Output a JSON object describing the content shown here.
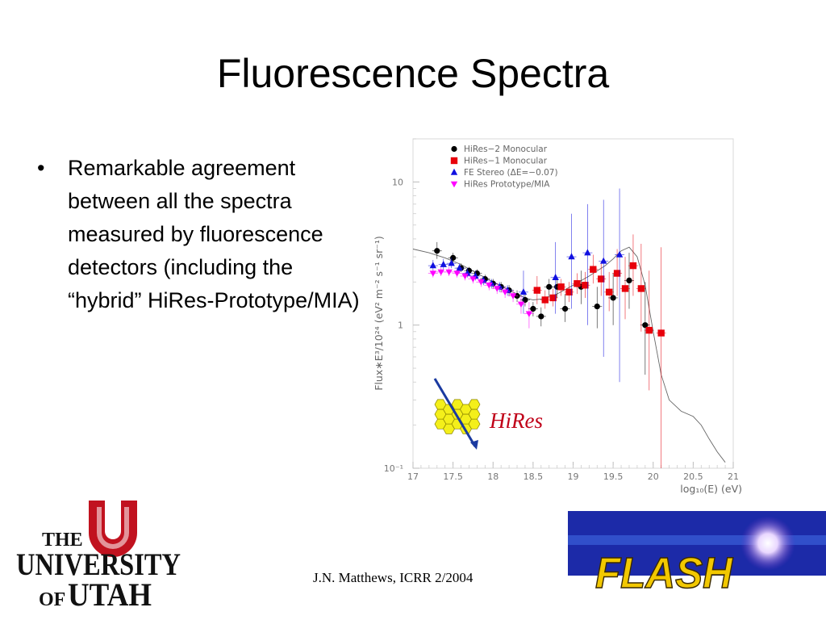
{
  "slide": {
    "title": "Fluorescence Spectra",
    "bullet_marker": "•",
    "bullet_text": "Remarkable agreement between all the spectra measured by fluorescence detectors (including the “hybrid” HiRes-Prototype/MIA)",
    "footer": "J.N. Matthews, ICRR 2/2004"
  },
  "logos": {
    "utah": {
      "line1": "THE",
      "line2": "UNIVERSITY",
      "line3a": "OF",
      "line3b": "UTAH"
    },
    "flash": {
      "text": "FLASH"
    },
    "hires": {
      "text": "HiRes"
    }
  },
  "colors": {
    "hires2": "#000000",
    "hires1": "#e8000b",
    "fe_stereo": "#1010e0",
    "prototype": "#ff00ff",
    "utah_red": "#c1121f",
    "flash_yellow": "#f2c800",
    "flash_bg": "#1c2aa8",
    "honeycomb": "#f4ef1a",
    "arrow": "#1a3aa0"
  },
  "chart_data": {
    "type": "scatter",
    "xlabel": "log₁₀(E) (eV)",
    "ylabel": "Flux∗E³/10²⁴ (eV² m⁻² s⁻¹ sr⁻¹)",
    "xlim": [
      17,
      21
    ],
    "ylim": [
      0.1,
      20
    ],
    "ylog": true,
    "xticks": [
      "17",
      "17.5",
      "18",
      "18.5",
      "19",
      "19.5",
      "20",
      "20.5",
      "21"
    ],
    "yticks": [
      {
        "value": 10,
        "label": "10"
      },
      {
        "value": 1,
        "label": "1"
      },
      {
        "value": 0.1,
        "label": "10⁻¹"
      }
    ],
    "legend_position": "top-left",
    "series": [
      {
        "name": "HiRes−2 Monocular",
        "marker": "circle",
        "color": "#000000",
        "points": [
          {
            "x": 17.3,
            "y": 3.3,
            "lo": 2.9,
            "hi": 3.8
          },
          {
            "x": 17.5,
            "y": 2.95,
            "lo": 2.7,
            "hi": 3.2
          },
          {
            "x": 17.6,
            "y": 2.5,
            "lo": 2.35,
            "hi": 2.7
          },
          {
            "x": 17.7,
            "y": 2.4,
            "lo": 2.25,
            "hi": 2.55
          },
          {
            "x": 17.8,
            "y": 2.3,
            "lo": 2.15,
            "hi": 2.45
          },
          {
            "x": 17.9,
            "y": 2.1,
            "lo": 1.95,
            "hi": 2.25
          },
          {
            "x": 18.0,
            "y": 1.95,
            "lo": 1.8,
            "hi": 2.1
          },
          {
            "x": 18.1,
            "y": 1.85,
            "lo": 1.7,
            "hi": 2.0
          },
          {
            "x": 18.2,
            "y": 1.75,
            "lo": 1.6,
            "hi": 1.9
          },
          {
            "x": 18.3,
            "y": 1.6,
            "lo": 1.45,
            "hi": 1.75
          },
          {
            "x": 18.4,
            "y": 1.5,
            "lo": 1.35,
            "hi": 1.65
          },
          {
            "x": 18.5,
            "y": 1.3,
            "lo": 1.15,
            "hi": 1.45
          },
          {
            "x": 18.6,
            "y": 1.15,
            "lo": 0.98,
            "hi": 1.33
          },
          {
            "x": 18.7,
            "y": 1.85,
            "lo": 1.6,
            "hi": 2.1
          },
          {
            "x": 18.8,
            "y": 1.85,
            "lo": 1.55,
            "hi": 2.15
          },
          {
            "x": 18.9,
            "y": 1.3,
            "lo": 1.05,
            "hi": 1.65
          },
          {
            "x": 19.1,
            "y": 1.85,
            "lo": 1.4,
            "hi": 2.4
          },
          {
            "x": 19.3,
            "y": 1.35,
            "lo": 0.95,
            "hi": 1.85
          },
          {
            "x": 19.5,
            "y": 1.55,
            "lo": 1.0,
            "hi": 2.3
          },
          {
            "x": 19.7,
            "y": 2.05,
            "lo": 1.3,
            "hi": 3.2
          },
          {
            "x": 19.9,
            "y": 1.0,
            "lo": 0.45,
            "hi": 2.0
          }
        ]
      },
      {
        "name": "HiRes−1 Monocular",
        "marker": "square",
        "color": "#e8000b",
        "points": [
          {
            "x": 18.55,
            "y": 1.75,
            "lo": 1.4,
            "hi": 2.2
          },
          {
            "x": 18.65,
            "y": 1.5,
            "lo": 1.3,
            "hi": 1.75
          },
          {
            "x": 18.75,
            "y": 1.55,
            "lo": 1.35,
            "hi": 1.8
          },
          {
            "x": 18.85,
            "y": 1.85,
            "lo": 1.6,
            "hi": 2.1
          },
          {
            "x": 18.95,
            "y": 1.7,
            "lo": 1.45,
            "hi": 2.0
          },
          {
            "x": 19.05,
            "y": 1.95,
            "lo": 1.65,
            "hi": 2.3
          },
          {
            "x": 19.15,
            "y": 1.9,
            "lo": 1.55,
            "hi": 2.35
          },
          {
            "x": 19.25,
            "y": 2.45,
            "lo": 1.95,
            "hi": 3.1
          },
          {
            "x": 19.35,
            "y": 2.1,
            "lo": 1.6,
            "hi": 2.75
          },
          {
            "x": 19.45,
            "y": 1.7,
            "lo": 1.25,
            "hi": 2.35
          },
          {
            "x": 19.55,
            "y": 2.3,
            "lo": 1.6,
            "hi": 3.4
          },
          {
            "x": 19.65,
            "y": 1.8,
            "lo": 1.1,
            "hi": 3.0
          },
          {
            "x": 19.75,
            "y": 2.6,
            "lo": 1.6,
            "hi": 4.3
          },
          {
            "x": 19.85,
            "y": 1.8,
            "lo": 0.9,
            "hi": 3.7
          },
          {
            "x": 19.95,
            "y": 0.92,
            "lo": 0.35,
            "hi": 2.4
          },
          {
            "x": 20.1,
            "y": 0.88,
            "lo": 0.1,
            "hi": 3.5
          }
        ]
      },
      {
        "name": "FE Stereo (ΔE=−0.07)",
        "marker": "triangle-up",
        "color": "#1010e0",
        "points": [
          {
            "x": 17.25,
            "y": 2.6,
            "lo": 2.4,
            "hi": 2.85
          },
          {
            "x": 17.38,
            "y": 2.65,
            "lo": 2.45,
            "hi": 2.9
          },
          {
            "x": 17.48,
            "y": 2.7,
            "lo": 2.5,
            "hi": 2.95
          },
          {
            "x": 17.58,
            "y": 2.5,
            "lo": 2.3,
            "hi": 2.7
          },
          {
            "x": 17.68,
            "y": 2.3,
            "lo": 2.15,
            "hi": 2.5
          },
          {
            "x": 17.78,
            "y": 2.2,
            "lo": 2.05,
            "hi": 2.4
          },
          {
            "x": 17.88,
            "y": 2.05,
            "lo": 1.9,
            "hi": 2.2
          },
          {
            "x": 17.98,
            "y": 1.95,
            "lo": 1.8,
            "hi": 2.1
          },
          {
            "x": 18.08,
            "y": 1.85,
            "lo": 1.7,
            "hi": 2.0
          },
          {
            "x": 18.18,
            "y": 1.75,
            "lo": 1.6,
            "hi": 1.9
          },
          {
            "x": 18.38,
            "y": 1.7,
            "lo": 1.2,
            "hi": 2.4
          },
          {
            "x": 18.78,
            "y": 2.15,
            "lo": 1.2,
            "hi": 3.8
          },
          {
            "x": 18.98,
            "y": 3.0,
            "lo": 1.3,
            "hi": 6.0
          },
          {
            "x": 19.18,
            "y": 3.2,
            "lo": 1.0,
            "hi": 7.0
          },
          {
            "x": 19.38,
            "y": 2.8,
            "lo": 0.6,
            "hi": 7.5
          },
          {
            "x": 19.58,
            "y": 3.1,
            "lo": 0.4,
            "hi": 9.0
          }
        ]
      },
      {
        "name": "HiRes Prototype/MIA",
        "marker": "triangle-down",
        "color": "#ff00ff",
        "points": [
          {
            "x": 17.25,
            "y": 2.3,
            "lo": 2.15,
            "hi": 2.45
          },
          {
            "x": 17.35,
            "y": 2.35,
            "lo": 2.2,
            "hi": 2.55
          },
          {
            "x": 17.45,
            "y": 2.35,
            "lo": 2.2,
            "hi": 2.55
          },
          {
            "x": 17.55,
            "y": 2.3,
            "lo": 2.15,
            "hi": 2.45
          },
          {
            "x": 17.65,
            "y": 2.2,
            "lo": 2.05,
            "hi": 2.35
          },
          {
            "x": 17.75,
            "y": 2.1,
            "lo": 1.95,
            "hi": 2.25
          },
          {
            "x": 17.85,
            "y": 2.0,
            "lo": 1.85,
            "hi": 2.15
          },
          {
            "x": 17.95,
            "y": 1.9,
            "lo": 1.75,
            "hi": 2.05
          },
          {
            "x": 18.05,
            "y": 1.8,
            "lo": 1.65,
            "hi": 1.95
          },
          {
            "x": 18.15,
            "y": 1.7,
            "lo": 1.55,
            "hi": 1.85
          },
          {
            "x": 18.25,
            "y": 1.6,
            "lo": 1.45,
            "hi": 1.75
          },
          {
            "x": 18.35,
            "y": 1.4,
            "lo": 1.2,
            "hi": 1.6
          },
          {
            "x": 18.45,
            "y": 1.2,
            "lo": 0.95,
            "hi": 1.45
          }
        ]
      }
    ],
    "fit_curve": [
      [
        17.0,
        3.4
      ],
      [
        17.2,
        3.2
      ],
      [
        17.4,
        2.95
      ],
      [
        17.6,
        2.65
      ],
      [
        17.8,
        2.3
      ],
      [
        18.0,
        2.0
      ],
      [
        18.2,
        1.75
      ],
      [
        18.4,
        1.55
      ],
      [
        18.5,
        1.5
      ],
      [
        18.6,
        1.52
      ],
      [
        18.8,
        1.65
      ],
      [
        19.0,
        1.9
      ],
      [
        19.2,
        2.2
      ],
      [
        19.4,
        2.6
      ],
      [
        19.5,
        2.9
      ],
      [
        19.6,
        3.3
      ],
      [
        19.7,
        3.5
      ],
      [
        19.8,
        3.0
      ],
      [
        19.9,
        1.9
      ],
      [
        20.0,
        0.9
      ],
      [
        20.1,
        0.45
      ],
      [
        20.2,
        0.3
      ],
      [
        20.35,
        0.25
      ],
      [
        20.5,
        0.23
      ],
      [
        20.6,
        0.2
      ],
      [
        20.7,
        0.16
      ],
      [
        20.8,
        0.13
      ],
      [
        20.9,
        0.11
      ]
    ]
  }
}
